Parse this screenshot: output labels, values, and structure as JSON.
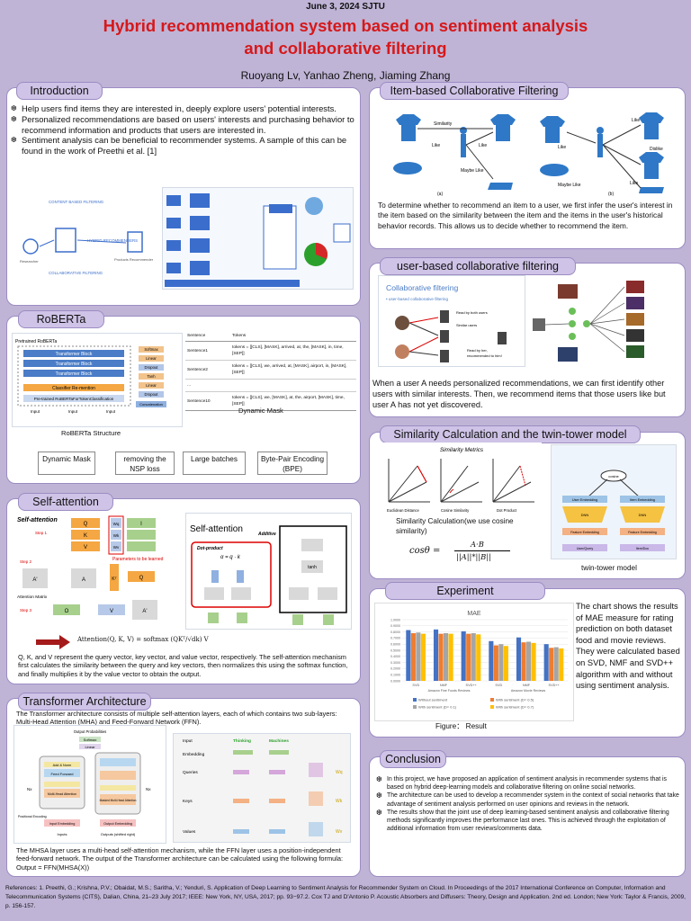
{
  "header": {
    "date": "June 3, 2024 SJTU",
    "title_line1": "Hybrid recommendation system based on sentiment analysis",
    "title_line2": "and collaborative filtering",
    "authors": "Ruoyang Lv, Yanhao Zheng, Jiaming Zhang"
  },
  "intro": {
    "title": "Introduction",
    "bullets": [
      "Help users find items they are interested in, deeply explore users' potential interests.",
      "Personalized recommendations are based on users' interests and purchasing behavior to recommend information and products that users are interested in.",
      "Sentiment analysis can be beneficial to recommender systems. A sample of this can be found in the work of Preethi et al. [1]"
    ],
    "diagram_labels": [
      "CONTENT BASED FILTERING",
      "HYBRID RECOMMENDERS",
      "COLLABORATIVE FILTERING",
      "Researcher",
      "Products Recommender"
    ]
  },
  "roberta": {
    "title": "RoBERTa",
    "structure_caption": "RoBERTa Structure",
    "mask_caption": "Dynamic Mask",
    "table_headers": [
      "Sentence",
      "Tokens"
    ],
    "table_rows": [
      [
        "Sentence1",
        "tokens = [[CLS], [MASK], arrived, at, the, [MASK], in, time, [SEP]]"
      ],
      [
        "Sentence2",
        "tokens = [[CLS], we, arrived, at, [MASK], airport, in, [MASK], [SEP]]"
      ],
      [
        "...",
        ""
      ],
      [
        "Sentence10",
        "tokens = [[CLS], we, [MASK], at, the, airport, [MASK], time, [SEP]]"
      ]
    ],
    "arch_blocks": [
      "Pretrained RoBERTa",
      "Transformer Block",
      "Transformer Block",
      "Transformer Block",
      "Classifier Re-mention",
      "Pre-trained RoBERTaForTokenClassification",
      "Input",
      "Input",
      "Input"
    ],
    "side_blocks": [
      "Softmax",
      "Linear",
      "Dropout",
      "Tanh",
      "Linear",
      "Dropout",
      "Concatenation"
    ],
    "features": [
      "Dynamic Mask",
      "removing the NSP loss",
      "Large batches",
      "Byte-Pair Encoding (BPE)"
    ]
  },
  "selfatt": {
    "title": "Self-attention",
    "fig_left_title": "Self-attention",
    "steps": [
      "Step 1",
      "Step 2",
      "Step 3"
    ],
    "mat_labels": [
      "Q",
      "K",
      "V",
      "I",
      "A'",
      "A",
      "Kᵀ",
      "Q",
      "O",
      "V",
      "A'"
    ],
    "weights": [
      "Wq",
      "Wk",
      "Wv"
    ],
    "param_note": "Parameters to be learned",
    "attn_matrix_label": "Attention Matrix",
    "fig_right_title": "Self-attention",
    "dot_product": "Dot-product",
    "additive": "Additive",
    "dot_formula": "α = q · k",
    "tanh": "tanh",
    "formula": "Attention(Q, K, V) = softmax (QKᵀ/√dk) V",
    "description": "Q, K, and V represent the query vector, key vector, and value vector, respectively. The self-attention mechanism first calculates the similarity between the query and key vectors, then normalizes this using the softmax function, and finally multiplies it by the value vector to obtain the output."
  },
  "transformer": {
    "title": "Transformer Architecture",
    "intro": "The Transformer architecture consists of multiple self-attention layers, each of which contains two sub-layers: Multi-Head Attention (MHA) and Feed-Forward Network (FFN).",
    "arch_labels": [
      "Output Probabilities",
      "Softmax",
      "Linear",
      "Add & Norm",
      "Feed Forward",
      "Multi-Head Attention",
      "Masked Multi-Head Attention",
      "Positional Encoding",
      "Input Embedding",
      "Output Embedding",
      "Inputs",
      "Outputs (shifted right)",
      "Nx",
      "Nx"
    ],
    "qkv_labels": [
      "Input",
      "Thinking",
      "Machines",
      "Embedding",
      "Queries",
      "Keys",
      "Values",
      "Wq",
      "Wk",
      "Wv"
    ],
    "outro": "The MHSA layer uses a multi-head self-attention mechanism, while the FFN layer uses a position-independent feed-forward network. The output of the Transformer architecture can be calculated using the following formula: Output = FFN(MHSA(X))"
  },
  "icf": {
    "title": "Item-based Collaborative Filtering (ICF)",
    "fig_labels": [
      "Similarity",
      "Like",
      "Like",
      "Maybe Like",
      "(a)",
      "(b)",
      "Like",
      "Like",
      "Dislike",
      "Maybe Like",
      "Like"
    ],
    "description": "To determine whether to recommend an item to a user, we first infer the user's interest in the item based on the similarity between the item and the items in the user's historical behavior records. This allows us to decide whether to recommend the item."
  },
  "ucf": {
    "title": "user-based collaborative filtering (UCF)",
    "fig_title": "Collaborative filtering",
    "fig_subtitle": "• user-based collaborative filtering",
    "fig_labels": [
      "Read by both users",
      "Similar users",
      "Read by her,",
      "recommended to him!"
    ],
    "description": "When a user A needs personalized recommendations, we can first identify other users with similar interests. Then, we recommend items that those users like but user A has not yet discovered."
  },
  "similarity": {
    "title": "Similarity Calculation and the twin-tower model",
    "metrics_title": "Similarity Metrics",
    "metric_names": [
      "Euclidean Distance",
      "Cosine Similarity",
      "Dot Product"
    ],
    "caption": "Similarity Calculation(we use cosine similarity)",
    "formula_left": "cosθ =",
    "formula_num": "A·B",
    "formula_den": "||A||*||B||",
    "tower_caption": "twin-tower model",
    "tower_labels": [
      "cosine",
      "User Embedding",
      "Item Embedding",
      "DNN",
      "DNN",
      "Feature Embedding",
      "Feature Embedding",
      "User/Query",
      "Item/Doc"
    ]
  },
  "experiment": {
    "title": "Experiment",
    "caption": "Figure： Result",
    "description": "The chart shows the results of MAE measure for rating prediction on both dataset food and movie reviews. They were calculated based on SVD, NMF and SVD++ algorithm with and without using sentiment analysis."
  },
  "chart_data": {
    "type": "bar",
    "title": "MAE",
    "categories": [
      "SVD",
      "NMF",
      "SVD++",
      "SVD",
      "NMF",
      "SVD++"
    ],
    "groups": [
      "Amazon Fine Foods Reviews",
      "Amazon Movie Reviews"
    ],
    "ylim": [
      0,
      1.0
    ],
    "yticks": [
      "0.0000",
      "0.1000",
      "0.2000",
      "0.3000",
      "0.4000",
      "0.5000",
      "0.6000",
      "0.7000",
      "0.8000",
      "0.9000",
      "1.0000"
    ],
    "series": [
      {
        "name": "Without sentiment",
        "color": "#4472c4",
        "values": [
          0.83,
          0.84,
          0.81,
          0.65,
          0.71,
          0.6
        ]
      },
      {
        "name": "With sentiment (D= 0.5)",
        "color": "#ed7d31",
        "values": [
          0.78,
          0.77,
          0.77,
          0.58,
          0.63,
          0.54
        ]
      },
      {
        "name": "With sentiment (D= 0.1)",
        "color": "#a5a5a5",
        "values": [
          0.79,
          0.78,
          0.78,
          0.6,
          0.64,
          0.55
        ]
      },
      {
        "name": "With sentiment (D= 0.7)",
        "color": "#ffc000",
        "values": [
          0.77,
          0.77,
          0.76,
          0.57,
          0.62,
          0.53
        ]
      }
    ],
    "legend": "bottom"
  },
  "conclusion": {
    "title": "Conclusion",
    "bullets": [
      "In this project, we have proposed an application of sentiment analysis in recommender systems that is based on hybrid deep-learning models and collaborative filtering on online social networks.",
      "The architecture can be used to develop a recommender system in the context of social networks that take advantage of sentiment analysis performed on user opinions and reviews in the network.",
      "The results show that the joint use of deep learning-based sentiment analysis and collaborative filtering methods significantly improves the performance last ones. This is achieved through the exploitation of additional information from user reviews/comments data."
    ]
  },
  "references": "References: 1. Preethi, G.; Krishna, P.V.; Obaidat, M.S.; Saritha, V.; Yenduri, S. Application of Deep Learning to Sentiment Analysis for Recommender System on Cloud. In Proceedings of the 2017 International Conference on Computer, Information and Telecommunication Systems (CITS), Dalian, China, 21–23 July 2017; IEEE: New York, NY, USA, 2017; pp. 93−97.2. Cox TJ and D'Antonio P. Acoustic Absorbers and Diffusers: Theory, Design and Application. 2nd ed. London; New York: Taylor & Francis, 2009, p. 156-157."
}
